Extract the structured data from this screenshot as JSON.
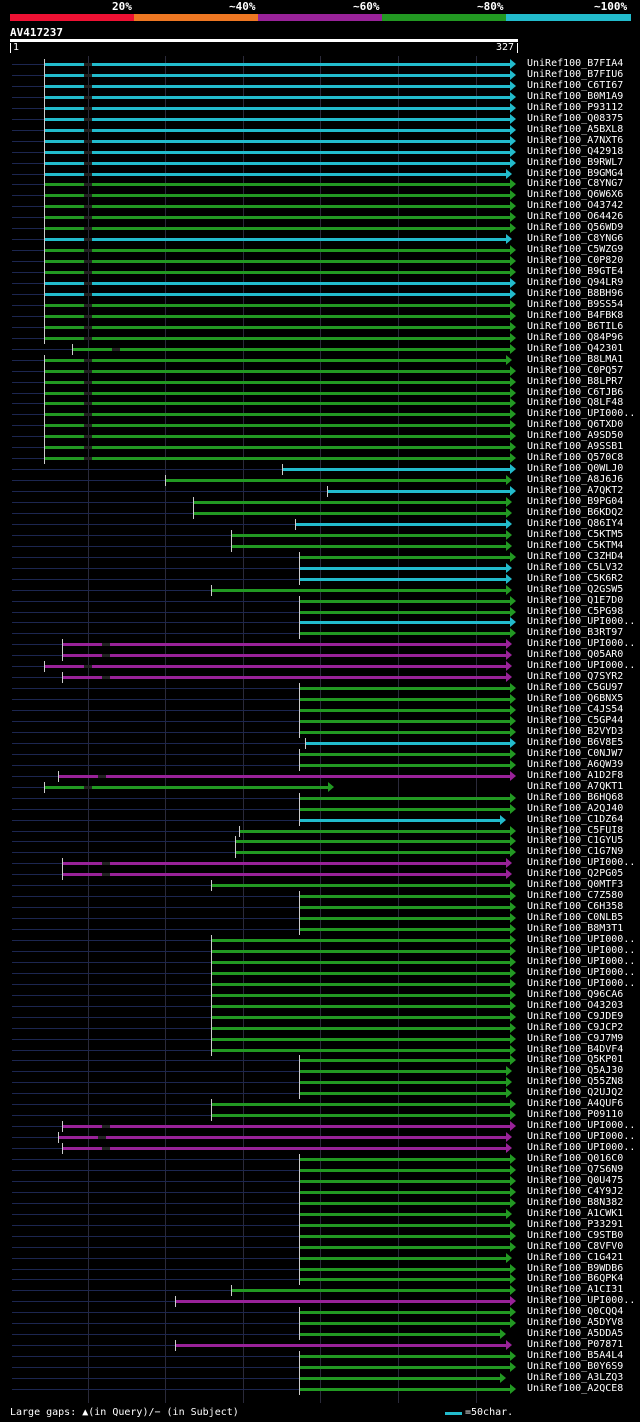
{
  "legend": {
    "labels": [
      "20%",
      "~40%",
      "~60%",
      "~80%",
      "~100%"
    ],
    "colors": [
      "#ee1133",
      "#ee7722",
      "#992299",
      "#229922",
      "#22bbcc"
    ]
  },
  "query": {
    "name": "AV417237",
    "start": "1",
    "end": "327"
  },
  "footer": {
    "gaps": "Large gaps: ▲(in Query)/− (in Subject)",
    "scale": "=50char."
  },
  "colors": {
    "cyan": "#22bbcc",
    "green": "#229922",
    "purple": "#992299"
  },
  "hits": [
    [
      "UniRef100_B7FIA4",
      "c",
      44,
      510
    ],
    [
      "UniRef100_B7FIU6",
      "c",
      44,
      510
    ],
    [
      "UniRef100_C6TI67",
      "c",
      44,
      510
    ],
    [
      "UniRef100_B0M1A9",
      "c",
      44,
      510
    ],
    [
      "UniRef100_P93112",
      "c",
      44,
      510
    ],
    [
      "UniRef100_Q08375",
      "c",
      44,
      510
    ],
    [
      "UniRef100_A5BXL8",
      "c",
      44,
      510
    ],
    [
      "UniRef100_A7NXT6",
      "c",
      44,
      510
    ],
    [
      "UniRef100_Q42918",
      "c",
      44,
      510
    ],
    [
      "UniRef100_B9RWL7",
      "c",
      44,
      510
    ],
    [
      "UniRef100_B9GMG4",
      "c",
      44,
      506
    ],
    [
      "UniRef100_C8YNG7",
      "g",
      44,
      510
    ],
    [
      "UniRef100_Q6W6X6",
      "g",
      44,
      510
    ],
    [
      "UniRef100_O43742",
      "g",
      44,
      510
    ],
    [
      "UniRef100_O64426",
      "g",
      44,
      510
    ],
    [
      "UniRef100_Q56WD9",
      "g",
      44,
      510
    ],
    [
      "UniRef100_C8YNG6",
      "c",
      44,
      506
    ],
    [
      "UniRef100_C5WZG9",
      "g",
      44,
      510
    ],
    [
      "UniRef100_C0P820",
      "g",
      44,
      510
    ],
    [
      "UniRef100_B9GTE4",
      "g",
      44,
      510
    ],
    [
      "UniRef100_Q94LR9",
      "c",
      44,
      510
    ],
    [
      "UniRef100_B8BH96",
      "c",
      44,
      510
    ],
    [
      "UniRef100_B9SS54",
      "g",
      44,
      510
    ],
    [
      "UniRef100_B4FBK8",
      "g",
      44,
      510
    ],
    [
      "UniRef100_B6TIL6",
      "g",
      44,
      510
    ],
    [
      "UniRef100_Q84P96",
      "g",
      44,
      510
    ],
    [
      "UniRef100_Q42301",
      "g",
      72,
      510
    ],
    [
      "UniRef100_B8LMA1",
      "g",
      44,
      506
    ],
    [
      "UniRef100_C0PQ57",
      "g",
      44,
      510
    ],
    [
      "UniRef100_B8LPR7",
      "g",
      44,
      510
    ],
    [
      "UniRef100_C6TJB6",
      "g",
      44,
      510
    ],
    [
      "UniRef100_Q8LF48",
      "g",
      44,
      510
    ],
    [
      "UniRef100_UPI000..",
      "g",
      44,
      510
    ],
    [
      "UniRef100_Q6TXD0",
      "g",
      44,
      510
    ],
    [
      "UniRef100_A9SD50",
      "g",
      44,
      510
    ],
    [
      "UniRef100_A9SSB1",
      "g",
      44,
      510
    ],
    [
      "UniRef100_Q570C8",
      "g",
      44,
      510
    ],
    [
      "UniRef100_Q0WLJ0",
      "c",
      282,
      510
    ],
    [
      "UniRef100_A8J6J6",
      "g",
      165,
      506
    ],
    [
      "UniRef100_A7QKT2",
      "c",
      327,
      510
    ],
    [
      "UniRef100_B9PG04",
      "g",
      193,
      506
    ],
    [
      "UniRef100_B6KDQ2",
      "g",
      193,
      506
    ],
    [
      "UniRef100_Q86IY4",
      "c",
      295,
      506
    ],
    [
      "UniRef100_C5KTM5",
      "g",
      231,
      506
    ],
    [
      "UniRef100_C5KTM4",
      "g",
      231,
      506
    ],
    [
      "UniRef100_C3ZHD4",
      "g",
      299,
      510
    ],
    [
      "UniRef100_C5LV32",
      "c",
      299,
      506
    ],
    [
      "UniRef100_C5K6R2",
      "c",
      299,
      506
    ],
    [
      "UniRef100_Q2GSW5",
      "g",
      211,
      506
    ],
    [
      "UniRef100_Q1E7D0",
      "g",
      299,
      510
    ],
    [
      "UniRef100_C5PG98",
      "g",
      299,
      510
    ],
    [
      "UniRef100_UPI000..",
      "c",
      299,
      510
    ],
    [
      "UniRef100_B3RT97",
      "g",
      299,
      510
    ],
    [
      "UniRef100_UPI000..",
      "p",
      62,
      506
    ],
    [
      "UniRef100_Q05AR0",
      "p",
      62,
      506
    ],
    [
      "UniRef100_UPI000..",
      "p",
      44,
      506
    ],
    [
      "UniRef100_Q7SYR2",
      "p",
      62,
      506
    ],
    [
      "UniRef100_C5GU97",
      "g",
      299,
      510
    ],
    [
      "UniRef100_Q6BNX5",
      "g",
      299,
      510
    ],
    [
      "UniRef100_C4JS54",
      "g",
      299,
      510
    ],
    [
      "UniRef100_C5GP44",
      "g",
      299,
      510
    ],
    [
      "UniRef100_B2VYD3",
      "g",
      299,
      510
    ],
    [
      "UniRef100_B6V8E5",
      "c",
      305,
      510
    ],
    [
      "UniRef100_C0NJW7",
      "g",
      299,
      510
    ],
    [
      "UniRef100_A6QW39",
      "g",
      299,
      510
    ],
    [
      "UniRef100_A1D2F8",
      "p",
      58,
      510
    ],
    [
      "UniRef100_A7QKT1",
      "g",
      44,
      328
    ],
    [
      "UniRef100_B6HQ68",
      "g",
      299,
      510
    ],
    [
      "UniRef100_A2QJ40",
      "g",
      299,
      510
    ],
    [
      "UniRef100_C1DZ64",
      "c",
      299,
      500
    ],
    [
      "UniRef100_C5FUI8",
      "g",
      239,
      510
    ],
    [
      "UniRef100_C1GYU5",
      "g",
      235,
      510
    ],
    [
      "UniRef100_C1G7N9",
      "g",
      235,
      510
    ],
    [
      "UniRef100_UPI000..",
      "p",
      62,
      506
    ],
    [
      "UniRef100_Q2PG05",
      "p",
      62,
      506
    ],
    [
      "UniRef100_Q0MTF3",
      "g",
      211,
      510
    ],
    [
      "UniRef100_C7Z580",
      "g",
      299,
      510
    ],
    [
      "UniRef100_C6H358",
      "g",
      299,
      510
    ],
    [
      "UniRef100_C0NLB5",
      "g",
      299,
      510
    ],
    [
      "UniRef100_B8M3T1",
      "g",
      299,
      510
    ],
    [
      "UniRef100_UPI000..",
      "g",
      211,
      510
    ],
    [
      "UniRef100_UPI000..",
      "g",
      211,
      510
    ],
    [
      "UniRef100_UPI000..",
      "g",
      211,
      510
    ],
    [
      "UniRef100_UPI000..",
      "g",
      211,
      510
    ],
    [
      "UniRef100_UPI000..",
      "g",
      211,
      510
    ],
    [
      "UniRef100_Q96CA6",
      "g",
      211,
      510
    ],
    [
      "UniRef100_O43203",
      "g",
      211,
      510
    ],
    [
      "UniRef100_C9JDE9",
      "g",
      211,
      510
    ],
    [
      "UniRef100_C9JCP2",
      "g",
      211,
      510
    ],
    [
      "UniRef100_C9J7M9",
      "g",
      211,
      510
    ],
    [
      "UniRef100_B4DVF4",
      "g",
      211,
      510
    ],
    [
      "UniRef100_Q5KP01",
      "g",
      299,
      510
    ],
    [
      "UniRef100_Q5AJ30",
      "g",
      299,
      506
    ],
    [
      "UniRef100_Q55ZN8",
      "g",
      299,
      506
    ],
    [
      "UniRef100_Q2UJQ2",
      "g",
      299,
      506
    ],
    [
      "UniRef100_A4QUF6",
      "g",
      211,
      510
    ],
    [
      "UniRef100_P09110",
      "g",
      211,
      510
    ],
    [
      "UniRef100_UPI000..",
      "p",
      62,
      510
    ],
    [
      "UniRef100_UPI000..",
      "p",
      58,
      506
    ],
    [
      "UniRef100_UPI000..",
      "p",
      62,
      506
    ],
    [
      "UniRef100_Q016C0",
      "g",
      299,
      510
    ],
    [
      "UniRef100_Q7S6N9",
      "g",
      299,
      510
    ],
    [
      "UniRef100_Q0U475",
      "g",
      299,
      510
    ],
    [
      "UniRef100_C4Y9J2",
      "g",
      299,
      510
    ],
    [
      "UniRef100_B8N382",
      "g",
      299,
      510
    ],
    [
      "UniRef100_A1CWK1",
      "g",
      299,
      506
    ],
    [
      "UniRef100_P33291",
      "g",
      299,
      510
    ],
    [
      "UniRef100_C9STB0",
      "g",
      299,
      510
    ],
    [
      "UniRef100_C8VFV0",
      "g",
      299,
      510
    ],
    [
      "UniRef100_C1G421",
      "g",
      299,
      506
    ],
    [
      "UniRef100_B9WDB6",
      "g",
      299,
      510
    ],
    [
      "UniRef100_B6QPK4",
      "g",
      299,
      510
    ],
    [
      "UniRef100_A1CI31",
      "g",
      231,
      510
    ],
    [
      "UniRef100_UPI000..",
      "p",
      175,
      510
    ],
    [
      "UniRef100_Q0CQQ4",
      "g",
      299,
      510
    ],
    [
      "UniRef100_A5DYV8",
      "g",
      299,
      510
    ],
    [
      "UniRef100_A5DDA5",
      "g",
      299,
      500
    ],
    [
      "UniRef100_P07871",
      "p",
      175,
      506
    ],
    [
      "UniRef100_B5A4L4",
      "g",
      299,
      510
    ],
    [
      "UniRef100_B0Y6S9",
      "g",
      299,
      510
    ],
    [
      "UniRef100_A3LZQ3",
      "g",
      299,
      500
    ],
    [
      "UniRef100_A2QCE8",
      "g",
      299,
      510
    ]
  ]
}
